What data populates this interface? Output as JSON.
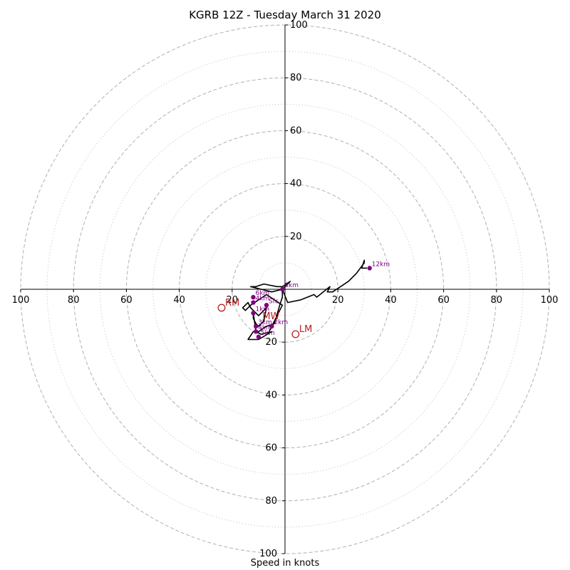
{
  "chart_data": {
    "type": "hodograph",
    "title": "KGRB 12Z - Tuesday March 31 2020",
    "xlabel": "Speed in knots",
    "units": "knots",
    "max_speed": 100,
    "ring_speeds_dashed": [
      20,
      40,
      60,
      80,
      100
    ],
    "ring_speeds_dotted": [
      10,
      30,
      50,
      70,
      90
    ],
    "axis_ticks": {
      "right": [
        "20",
        "40",
        "60",
        "80",
        "100"
      ],
      "left": [
        "20",
        "40",
        "60",
        "80",
        "100"
      ],
      "up": [
        "20",
        "40",
        "60",
        "80",
        "100"
      ],
      "down": [
        "20",
        "40",
        "60",
        "80",
        "100"
      ]
    },
    "trace": [
      [
        -6,
        -16
      ],
      [
        -1,
        -6
      ],
      [
        -7,
        -2
      ],
      [
        -13,
        -6
      ],
      [
        -15,
        -8
      ],
      [
        -16,
        -7
      ],
      [
        -14,
        -5
      ],
      [
        -13,
        -7
      ],
      [
        -10,
        -10
      ],
      [
        -7,
        -7
      ],
      [
        -8,
        -12
      ],
      [
        -10,
        -14
      ],
      [
        -11,
        -13
      ],
      [
        -12,
        -11
      ],
      [
        -12,
        -9
      ],
      [
        -11,
        -16
      ],
      [
        -9,
        -17
      ],
      [
        -5,
        -16
      ],
      [
        -10,
        -19
      ],
      [
        -14,
        -19
      ],
      [
        -12,
        -16
      ],
      [
        -10,
        -16
      ],
      [
        -7,
        -14
      ],
      [
        -4,
        -13
      ],
      [
        -2,
        -6
      ],
      [
        -1,
        -3
      ],
      [
        -1,
        0
      ],
      [
        2,
        3
      ],
      [
        -1,
        1
      ],
      [
        -3,
        1
      ],
      [
        -8,
        2
      ],
      [
        -11,
        1
      ],
      [
        -13,
        1
      ],
      [
        -9,
        0
      ],
      [
        -5,
        -1
      ],
      [
        -1,
        0
      ],
      [
        1,
        -5
      ],
      [
        6,
        -4
      ],
      [
        11,
        -2
      ],
      [
        12,
        -3
      ],
      [
        17,
        1
      ],
      [
        16,
        -1
      ],
      [
        18,
        -1
      ],
      [
        21,
        1
      ],
      [
        24,
        3
      ],
      [
        27,
        6
      ],
      [
        30,
        10
      ],
      [
        30,
        11
      ],
      [
        29,
        8
      ],
      [
        31,
        8
      ]
    ],
    "height_markers": [
      {
        "label": "Sfc",
        "u": -7,
        "v": -6
      },
      {
        "label": "1km",
        "u": -12,
        "v": -9
      },
      {
        "label": "2km",
        "u": -5,
        "v": -14
      },
      {
        "label": "3km",
        "u": -11,
        "v": -14
      },
      {
        "label": "4km",
        "u": -11,
        "v": -16
      },
      {
        "label": "4km",
        "u": -12,
        "v": -5
      },
      {
        "label": "5km",
        "u": -10,
        "v": -18
      },
      {
        "label": "6km",
        "u": -12,
        "v": -3
      },
      {
        "label": "8km",
        "u": -1,
        "v": 0
      },
      {
        "label": "12km",
        "u": 32,
        "v": 8
      }
    ],
    "storm_motion": [
      {
        "label": "RM",
        "u": -24,
        "v": -7
      },
      {
        "label": "LM",
        "u": 4,
        "v": -17
      },
      {
        "label": "MW",
        "u": -8,
        "v": -10
      }
    ],
    "colors": {
      "trace": "#000000",
      "markers": "#800080",
      "storm_motion": "#b22222",
      "grid": "#b0b0b0",
      "axis": "#000000"
    }
  }
}
